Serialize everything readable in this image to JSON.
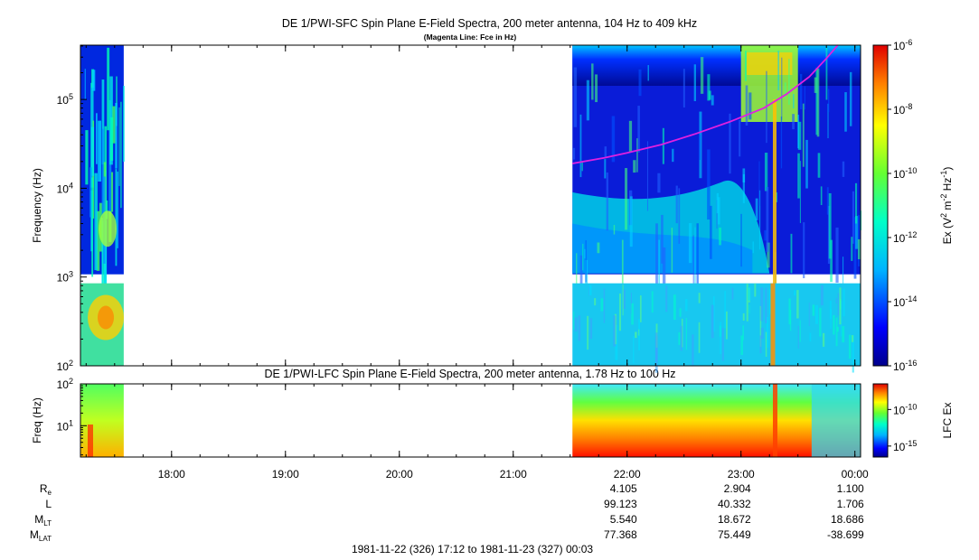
{
  "header": {
    "title_sfc": "DE 1/PWI-SFC  Spin Plane E-Field Spectra, 200 meter antenna, 104 Hz to 409 kHz",
    "subtitle_sfc": "(Magenta Line: Fce in Hz)",
    "title_lfc": "DE 1/PWI-LFC  Spin Plane E-Field Spectra, 200 meter antenna, 1.78 Hz to 100 Hz"
  },
  "footer": {
    "range": "1981-11-22 (326) 17:12 to 1981-11-23 (327) 00:03"
  },
  "colors": {
    "fce_line": "#e020e0",
    "background": "#ffffff",
    "axis": "#000000"
  },
  "chart_data": [
    {
      "type": "heatmap",
      "panel": "sfc",
      "ylabel": "Frequency (Hz)",
      "yscale": "log",
      "ylim": [
        100,
        409000
      ],
      "yticks": [
        "10^2",
        "10^3",
        "10^4",
        "10^5"
      ],
      "x_start": "17:12",
      "x_end": "00:03",
      "data_gap": [
        "17:35",
        "21:31"
      ],
      "colorbar": {
        "label": "Ex (V^2 m^-2 Hz^-1)",
        "scale": "log",
        "range": [
          1e-16,
          1e-06
        ],
        "ticks": [
          "10^-6",
          "10^-8",
          "10^-10",
          "10^-12",
          "10^-14",
          "10^-16"
        ]
      },
      "fce_line": {
        "name": "Fce in Hz",
        "x_hours": [
          21.52,
          21.8,
          22.0,
          22.3,
          22.6,
          22.9,
          23.2,
          23.4,
          23.6,
          23.75,
          23.85
        ],
        "y_hz": [
          19000,
          22000,
          25000,
          31000,
          41000,
          56000,
          80000,
          115000,
          180000,
          290000,
          409000
        ]
      }
    },
    {
      "type": "heatmap",
      "panel": "lfc",
      "ylabel": "Freq (Hz)",
      "yscale": "log",
      "ylim": [
        1.78,
        100
      ],
      "yticks": [
        "10^2",
        "10^1"
      ],
      "colorbar": {
        "label": "LFC Ex",
        "scale": "log",
        "ticks": [
          "10^-10",
          "10^-15"
        ]
      },
      "xticks": [
        "18:00",
        "19:00",
        "20:00",
        "21:00",
        "22:00",
        "23:00",
        "00:00"
      ]
    }
  ],
  "ephemeris": {
    "labels": [
      "R",
      "L",
      "M",
      "M"
    ],
    "label_subs": [
      "e",
      "",
      "LT",
      "LAT"
    ],
    "rows": [
      [
        "4.105",
        "2.904",
        "1.100"
      ],
      [
        "99.123",
        "40.332",
        "1.706"
      ],
      [
        "5.540",
        "18.672",
        "18.686"
      ],
      [
        "77.368",
        "75.449",
        "-38.699"
      ]
    ]
  }
}
